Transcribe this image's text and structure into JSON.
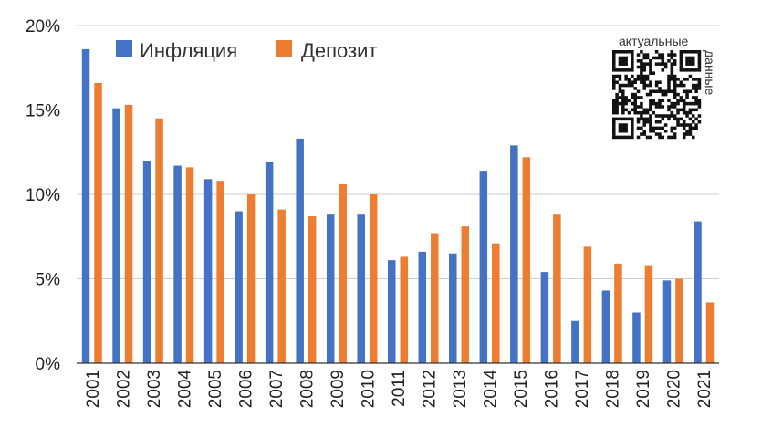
{
  "chart_data": {
    "type": "bar",
    "categories": [
      "2001",
      "2002",
      "2003",
      "2004",
      "2005",
      "2006",
      "2007",
      "2008",
      "2009",
      "2010",
      "2011",
      "2012",
      "2013",
      "2014",
      "2015",
      "2016",
      "2017",
      "2018",
      "2019",
      "2020",
      "2021"
    ],
    "series": [
      {
        "name": "Инфляция",
        "color": "#4472c4",
        "values": [
          18.6,
          15.1,
          12.0,
          11.7,
          10.9,
          9.0,
          11.9,
          13.3,
          8.8,
          8.8,
          6.1,
          6.6,
          6.5,
          11.4,
          12.9,
          5.4,
          2.5,
          4.3,
          3.0,
          4.9,
          8.4
        ]
      },
      {
        "name": "Депозит",
        "color": "#ed7d31",
        "values": [
          16.6,
          15.3,
          14.5,
          11.6,
          10.8,
          10.0,
          9.1,
          8.7,
          10.6,
          10.0,
          6.3,
          7.7,
          8.1,
          7.1,
          12.2,
          8.8,
          6.9,
          5.9,
          5.8,
          5.0,
          3.6
        ]
      }
    ],
    "y_ticks": [
      "0%",
      "5%",
      "10%",
      "15%",
      "20%"
    ],
    "ylim": [
      0,
      20
    ],
    "y_unit": "%",
    "grid": true,
    "legend_position": "top-left"
  },
  "qr_caption": {
    "line1": "актуальные",
    "line2": "данные"
  }
}
